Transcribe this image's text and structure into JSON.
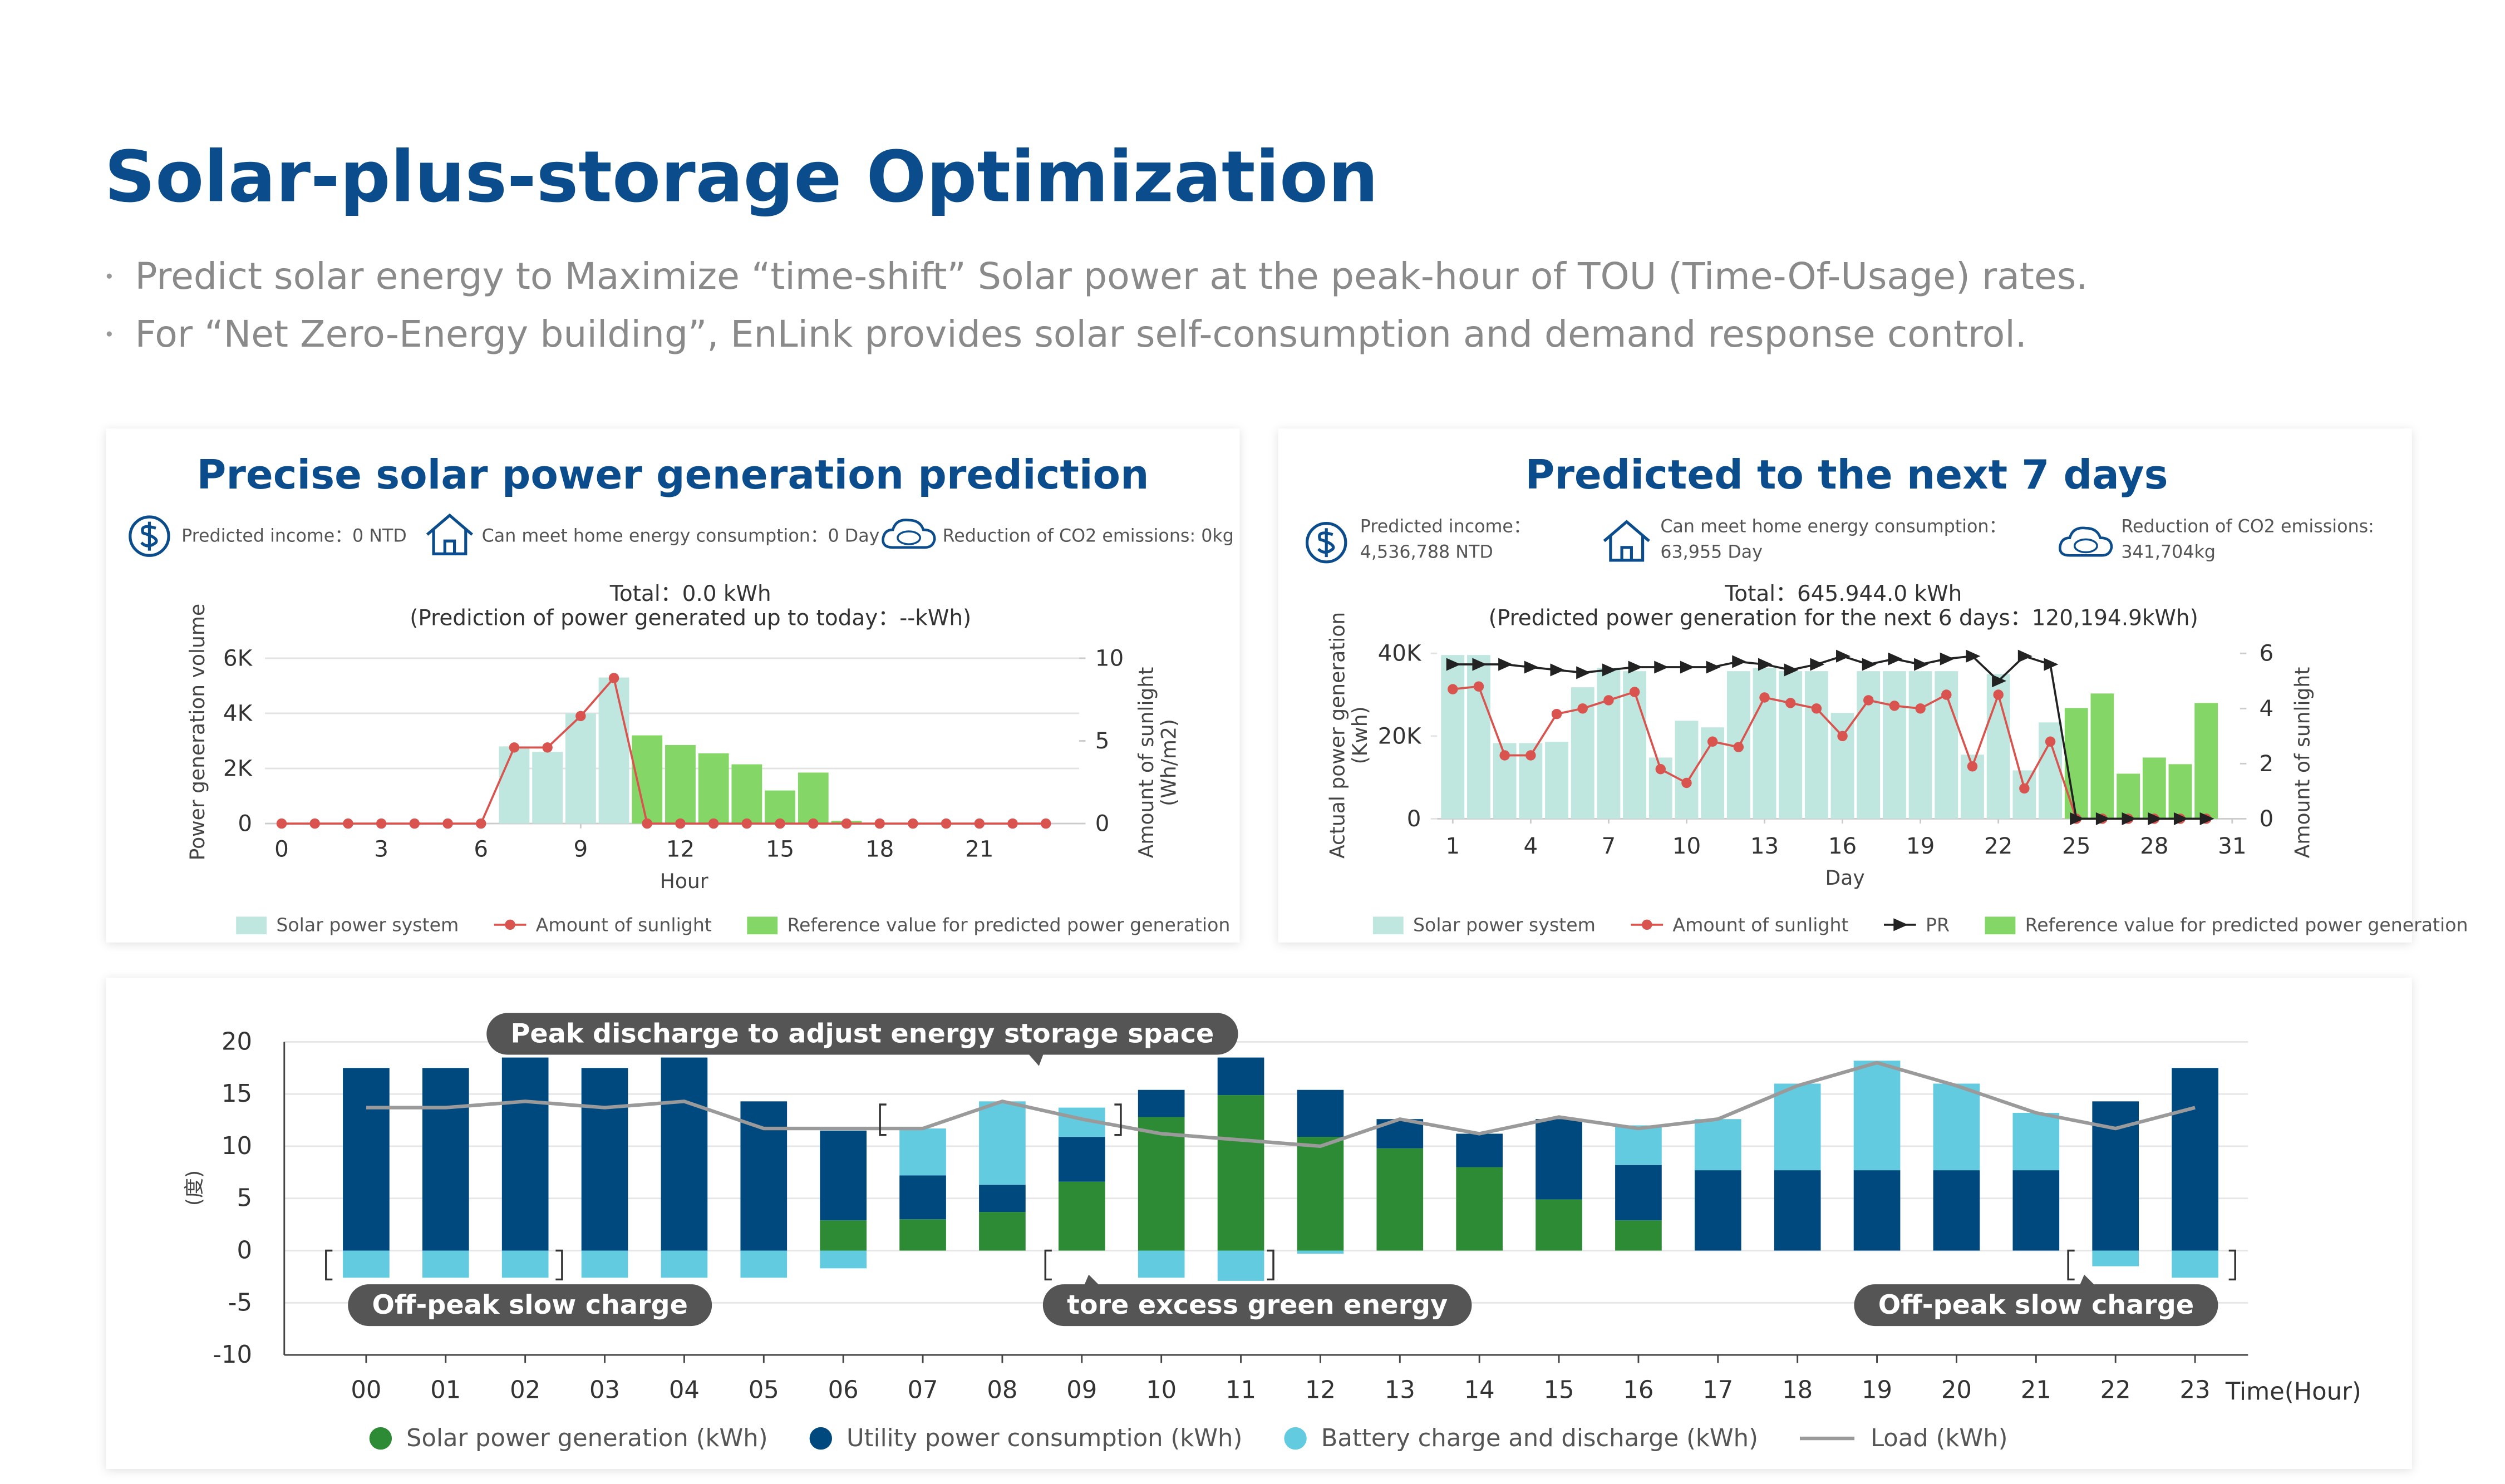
{
  "header": {
    "title": "Solar-plus-storage Optimization",
    "bullets": [
      "Predict solar energy to Maximize “time-shift” Solar power at the peak-hour of TOU (Time-Of-Usage) rates.",
      "For “Net Zero-Energy building”, EnLink provides solar self-consumption and demand response control."
    ]
  },
  "chart_data": [
    {
      "type": "combo",
      "title": "Precise solar power generation prediction",
      "stats": [
        "Predicted income：0 NTD",
        "Can meet home energy consumption：0 Day",
        "Reduction of CO2 emissions: 0kg"
      ],
      "subtitle": [
        "Total：0.0 kWh",
        "(Prediction of power generated up to today：--kWh)"
      ],
      "xlabel": "Hour",
      "ylabel": "Power generation volume",
      "y2label": [
        "Amount of sunlight",
        "(Wh/m2)"
      ],
      "x": [
        0,
        1,
        2,
        3,
        4,
        5,
        6,
        7,
        8,
        9,
        10,
        11,
        12,
        13,
        14,
        15,
        16,
        17,
        18,
        19,
        20,
        21,
        22,
        23
      ],
      "xlim": [
        -0.5,
        24
      ],
      "xticks": [
        0,
        3,
        6,
        9,
        12,
        15,
        18,
        21
      ],
      "ylim": [
        0,
        6000
      ],
      "yticks": [
        0,
        {
          "value": 2000,
          "label": "2K"
        },
        {
          "value": 4000,
          "label": "4K"
        },
        {
          "value": 6000,
          "label": "6K"
        }
      ],
      "y2lim": [
        0,
        10
      ],
      "y2ticks": [
        0,
        5,
        10
      ],
      "grid": true,
      "series": [
        {
          "name": "Solar power system",
          "type": "bar",
          "color": "#bfe6df",
          "values": [
            null,
            null,
            null,
            null,
            null,
            null,
            null,
            2800,
            2600,
            4000,
            5300,
            null,
            null,
            null,
            null,
            null,
            null,
            null,
            null,
            null,
            null,
            null,
            null,
            null
          ]
        },
        {
          "name": "Amount of sunlight",
          "type": "line",
          "axis": "y2",
          "marker": "circle",
          "color": "#d9534f",
          "values": [
            0,
            0,
            0,
            0,
            0,
            0,
            0,
            4.6,
            4.6,
            6.5,
            8.8,
            0,
            0,
            0,
            0,
            0,
            0,
            0,
            0,
            0,
            0,
            0,
            0,
            0
          ]
        },
        {
          "name": "Reference value for predicted power generation",
          "type": "bar",
          "color": "#84d767",
          "values": [
            null,
            null,
            null,
            null,
            null,
            null,
            null,
            null,
            null,
            null,
            null,
            3200,
            2850,
            2550,
            2150,
            1200,
            1850,
            100,
            null,
            null,
            null,
            null,
            null,
            null
          ]
        }
      ]
    },
    {
      "type": "combo",
      "title": "Predicted to the next 7 days",
      "stats": [
        {
          "label": "Predicted income：",
          "value": "4,536,788 NTD"
        },
        {
          "label": "Can meet home energy consumption：",
          "value": "63,955 Day"
        },
        {
          "label": "Reduction of CO2 emissions:",
          "value": "341,704kg"
        }
      ],
      "subtitle": [
        "Total：645.944.0 kWh",
        "(Predicted power generation for the next 6 days：120,194.9kWh)"
      ],
      "xlabel": "Day",
      "ylabel": [
        "Actual power generation",
        "(Kwh)"
      ],
      "y2label": [
        "Amount of sunlight"
      ],
      "x": [
        1,
        2,
        3,
        4,
        5,
        6,
        7,
        8,
        9,
        10,
        11,
        12,
        13,
        14,
        15,
        16,
        17,
        18,
        19,
        20,
        21,
        22,
        23,
        24,
        25,
        26,
        27,
        28,
        29,
        30,
        31
      ],
      "xlim": [
        0.4,
        31.3
      ],
      "xticks": [
        1,
        4,
        7,
        10,
        13,
        16,
        19,
        22,
        25,
        28,
        31
      ],
      "ylim": [
        0,
        40000
      ],
      "yticks": [
        0,
        {
          "value": 20000,
          "label": "20K"
        },
        {
          "value": 40000,
          "label": "40K"
        }
      ],
      "y2lim": [
        0,
        6
      ],
      "y2ticks": [
        0,
        2,
        4,
        6
      ],
      "grid": false,
      "series": [
        {
          "name": "Solar power system",
          "type": "bar",
          "color": "#bfe6df",
          "values": [
            39600,
            39600,
            18300,
            18300,
            18600,
            31800,
            36500,
            35700,
            14800,
            23700,
            22100,
            35700,
            36500,
            35700,
            35700,
            25600,
            35700,
            35700,
            35700,
            35700,
            15500,
            35000,
            11700,
            23300,
            null,
            null,
            null,
            null,
            null,
            null,
            null
          ]
        },
        {
          "name": "Amount of sunlight",
          "type": "line",
          "axis": "y2",
          "marker": "circle",
          "color": "#d9534f",
          "values": [
            4.7,
            4.8,
            2.3,
            2.3,
            3.8,
            4.0,
            4.3,
            4.6,
            1.8,
            1.3,
            2.8,
            2.6,
            4.4,
            4.2,
            4.0,
            3.0,
            4.3,
            4.1,
            4.0,
            4.5,
            1.9,
            4.5,
            1.1,
            2.8,
            0,
            0,
            0,
            0,
            0,
            0,
            null
          ]
        },
        {
          "name": "PR",
          "type": "line",
          "axis": "y2",
          "marker": "arrow",
          "color": "#222222",
          "values": [
            5.6,
            5.6,
            5.6,
            5.5,
            5.4,
            5.3,
            5.4,
            5.5,
            5.5,
            5.5,
            5.5,
            5.7,
            5.6,
            5.4,
            5.6,
            5.9,
            5.6,
            5.8,
            5.6,
            5.8,
            5.9,
            5.0,
            5.9,
            5.6,
            0,
            0,
            0,
            0,
            0,
            0,
            null
          ]
        },
        {
          "name": "Reference value for predicted power generation",
          "type": "bar",
          "color": "#84d767",
          "values": [
            null,
            null,
            null,
            null,
            null,
            null,
            null,
            null,
            null,
            null,
            null,
            null,
            null,
            null,
            null,
            null,
            null,
            null,
            null,
            null,
            null,
            null,
            null,
            null,
            26800,
            30300,
            10900,
            14800,
            13200,
            28000,
            null
          ]
        }
      ]
    },
    {
      "type": "stacked_bar",
      "xlabel": "Time(Hour)",
      "ylabel": "(度)",
      "categories": [
        "00",
        "01",
        "02",
        "03",
        "04",
        "05",
        "06",
        "07",
        "08",
        "09",
        "10",
        "11",
        "12",
        "13",
        "14",
        "15",
        "16",
        "17",
        "18",
        "19",
        "20",
        "21",
        "22",
        "23"
      ],
      "ylim": [
        -10,
        20
      ],
      "yticks": [
        -10,
        -5,
        0,
        5,
        10,
        15,
        20
      ],
      "grid": true,
      "annotations": [
        "Peak discharge to adjust energy storage space",
        "Off-peak slow charge",
        "tore excess green energy",
        "Off-peak slow charge"
      ],
      "series": [
        {
          "name": "Solar power generation (kWh)",
          "type": "bar",
          "color": "#2e8b35",
          "values": [
            0,
            0,
            0,
            0,
            0,
            0,
            2.9,
            3.0,
            3.7,
            6.6,
            12.8,
            14.9,
            10.9,
            9.8,
            8.0,
            4.9,
            2.9,
            0,
            0,
            0,
            0,
            0,
            0,
            0
          ]
        },
        {
          "name": "Utility power consumption (kWh)",
          "type": "bar",
          "color": "#00497f",
          "values": [
            17.5,
            17.5,
            18.5,
            17.5,
            18.5,
            14.3,
            8.6,
            4.2,
            2.6,
            4.3,
            2.6,
            3.6,
            4.5,
            2.8,
            3.2,
            7.7,
            5.3,
            7.7,
            7.7,
            7.7,
            7.7,
            7.7,
            14.3,
            17.5
          ]
        },
        {
          "name": "Battery charge and discharge (kWh)",
          "type": "bar",
          "color": "#63cbe0",
          "values": [
            -2.6,
            -2.6,
            -2.6,
            -2.6,
            -2.6,
            -2.6,
            -1.7,
            4.5,
            8.0,
            2.8,
            -2.6,
            -2.9,
            -0.3,
            0,
            0,
            0,
            3.8,
            4.9,
            8.3,
            10.5,
            8.3,
            5.5,
            -1.5,
            -2.6
          ]
        },
        {
          "name": "Load (kWh)",
          "type": "line",
          "color": "#9a9a9a",
          "values": [
            13.7,
            13.7,
            14.3,
            13.7,
            14.3,
            11.7,
            11.7,
            11.7,
            14.3,
            12.6,
            11.2,
            10.6,
            10.0,
            12.6,
            11.2,
            12.8,
            11.7,
            12.6,
            15.8,
            18.0,
            15.8,
            13.2,
            11.7,
            13.7
          ]
        }
      ]
    }
  ]
}
